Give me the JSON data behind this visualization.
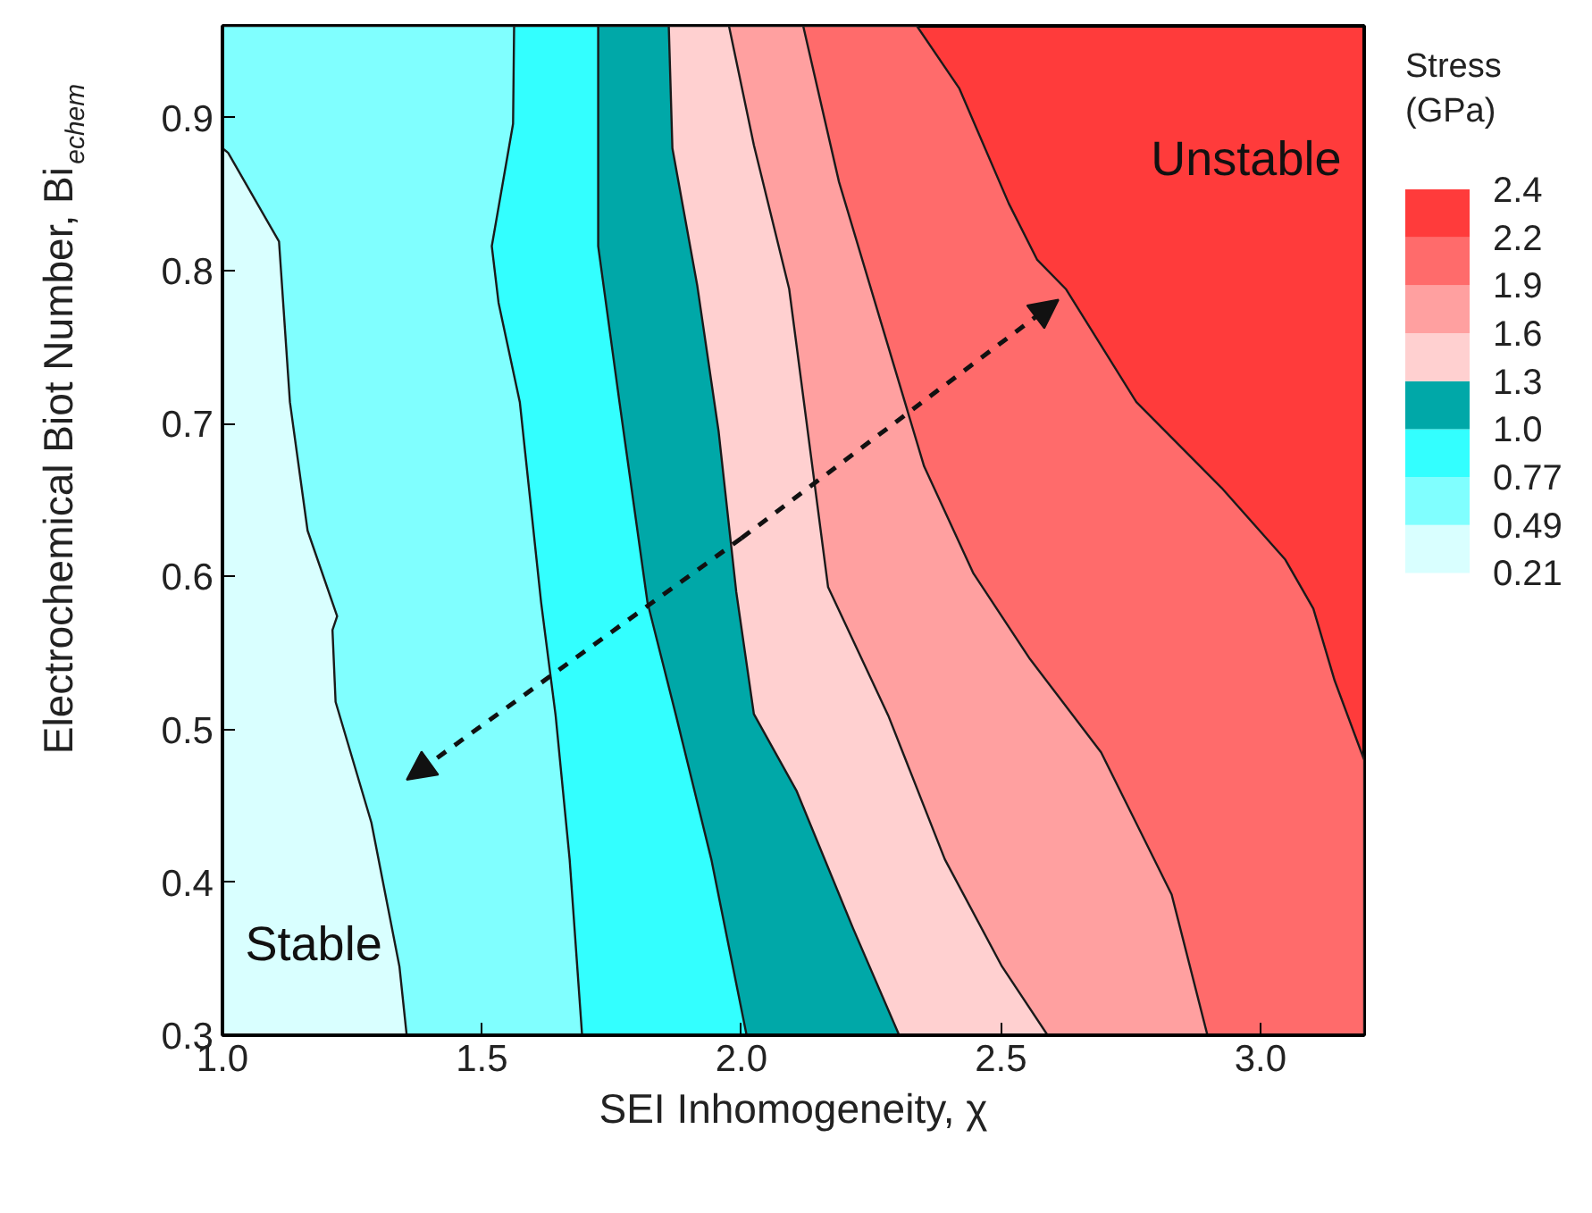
{
  "chart_data": {
    "type": "area",
    "orientation": "horizontal",
    "xlabel": "SEI Inhomogeneity, χ",
    "ylabel": "Electrochemical Biot Number, Bi$_{echem}$",
    "clabel": "Stress (GPa)",
    "xlim": [
      1.0,
      3.2
    ],
    "ylim": [
      0.3,
      0.96
    ],
    "xticks": [
      {
        "value": 1.0,
        "label": "1.0"
      },
      {
        "value": 1.5,
        "label": "1.5"
      },
      {
        "value": 2.0,
        "label": "2.0"
      },
      {
        "value": 2.5,
        "label": "2.5"
      },
      {
        "value": 3.0,
        "label": "3.0"
      }
    ],
    "yticks": [
      0.3,
      0.4,
      0.5,
      0.6,
      0.7,
      0.8,
      0.9
    ],
    "grid": false,
    "cticks": [
      0.21,
      0.49,
      0.77,
      {
        "value": 1.0,
        "label": "1.0"
      },
      1.3,
      1.6,
      1.9,
      2.2,
      2.4
    ],
    "colors": [
      "#d9ffff",
      "#80ffff",
      "#33ffff",
      "#00a8a8",
      "#ffd0d0",
      "#ffa0a0",
      "#ff6b6b",
      "#ff3b3b"
    ],
    "series": [
      {
        "color": "#d9ffff",
        "x": [
          0.88,
          0.877,
          0.819,
          0.714,
          0.63,
          0.574,
          0.565,
          0.518,
          0.439,
          0.345,
          0.3
        ],
        "values": [
          1.0,
          1.011,
          1.109,
          1.13,
          1.164,
          1.221,
          1.212,
          1.218,
          1.287,
          1.341,
          1.355
        ]
      },
      {
        "color": "#80ffff",
        "x": [
          0.96,
          0.896,
          0.816,
          0.779,
          0.714,
          0.583,
          0.509,
          0.415,
          0.3
        ],
        "values": [
          1.562,
          1.56,
          1.519,
          1.532,
          1.573,
          1.614,
          1.642,
          1.669,
          1.693
        ]
      },
      {
        "color": "#33ffff",
        "x": [
          0.96,
          0.816,
          0.714,
          0.583,
          0.509,
          0.415,
          0.3
        ],
        "values": [
          1.724,
          1.724,
          1.765,
          1.819,
          1.874,
          1.942,
          2.01
        ]
      },
      {
        "color": "#00a8a8",
        "x": [
          0.96,
          0.88,
          0.79,
          0.695,
          0.59,
          0.51,
          0.46,
          0.37,
          0.3
        ],
        "values": [
          1.86,
          1.867,
          1.915,
          1.956,
          1.99,
          2.024,
          2.106,
          2.215,
          2.304
        ]
      },
      {
        "color": "#ffd0d0",
        "x": [
          0.96,
          0.882,
          0.788,
          0.593,
          0.509,
          0.415,
          0.345,
          0.3
        ],
        "values": [
          1.976,
          2.024,
          2.092,
          2.167,
          2.283,
          2.392,
          2.502,
          2.59
        ]
      },
      {
        "color": "#ffa0a0",
        "x": [
          0.96,
          0.858,
          0.765,
          0.672,
          0.602,
          0.546,
          0.485,
          0.392,
          0.3
        ],
        "values": [
          2.119,
          2.188,
          2.27,
          2.352,
          2.447,
          2.556,
          2.693,
          2.829,
          2.898
        ]
      },
      {
        "color": "#ff6b6b",
        "x": [
          0.96,
          0.919,
          0.844,
          0.807,
          0.788,
          0.714,
          0.658,
          0.611,
          0.579,
          0.532,
          0.48,
          0.3
        ],
        "values": [
          2.338,
          2.42,
          2.515,
          2.57,
          2.625,
          2.761,
          2.925,
          3.048,
          3.102,
          3.143,
          3.2,
          3.2
        ]
      }
    ],
    "annotations": [
      "Stable",
      "Unstable"
    ]
  }
}
